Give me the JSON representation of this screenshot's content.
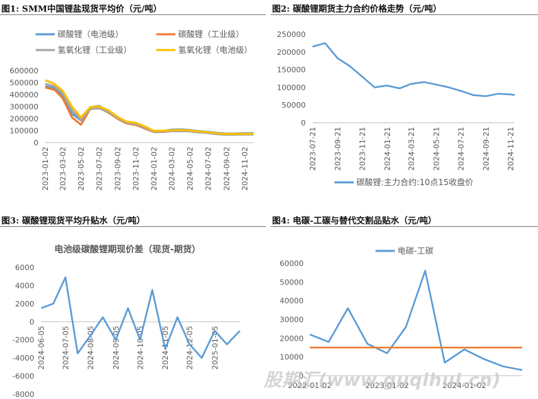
{
  "figures": [
    {
      "label": "图1:",
      "title": "SMM中国锂盐现货平均价（元/吨）"
    },
    {
      "label": "图2:",
      "title": "碳酸锂期货主力合约价格走势（元/吨）"
    },
    {
      "label": "图3:",
      "title": "碳酸锂现货平均升贴水（元/吨）"
    },
    {
      "label": "图4:",
      "title": "电碳-工碳与替代交割品贴水（元/吨）"
    }
  ],
  "watermark": "股期汇(www.guqihui.cn)",
  "chart_data": [
    {
      "type": "line",
      "title": "",
      "x": [
        "2023-01-02",
        "2023-02-02",
        "2023-03-02",
        "2023-04-02",
        "2023-05-02",
        "2023-06-02",
        "2023-07-02",
        "2023-08-02",
        "2023-09-02",
        "2023-10-02",
        "2023-11-02",
        "2023-12-02",
        "2024-01-02",
        "2024-02-02",
        "2024-03-02",
        "2024-04-02",
        "2024-05-02",
        "2024-06-02",
        "2024-07-02",
        "2024-08-02",
        "2024-09-02",
        "2024-10-02",
        "2024-11-02",
        "2024-12-02"
      ],
      "x_ticks": [
        "2023-01-02",
        "2023-03-02",
        "2023-05-02",
        "2023-07-02",
        "2023-09-02",
        "2023-11-02",
        "2024-01-02",
        "2024-03-02",
        "2024-05-02",
        "2024-07-02",
        "2024-09-02",
        "2024-11-02"
      ],
      "ylim": [
        0,
        600000
      ],
      "y_ticks": [
        "0",
        "100000",
        "200000",
        "300000",
        "400000",
        "500000",
        "600000"
      ],
      "legend_position": "top",
      "series": [
        {
          "name": "碳酸锂（电池级）",
          "color": "#5b9bd5",
          "values": [
            470000,
            455000,
            395000,
            240000,
            185000,
            295000,
            305000,
            265000,
            210000,
            170000,
            160000,
            130000,
            97000,
            97000,
            108000,
            110000,
            105000,
            95000,
            90000,
            80000,
            75000,
            76000,
            78000,
            78000
          ]
        },
        {
          "name": "碳酸锂（工业级）",
          "color": "#ed7d31",
          "values": [
            460000,
            440000,
            370000,
            210000,
            150000,
            280000,
            290000,
            250000,
            198000,
            160000,
            148000,
            118000,
            88000,
            88000,
            100000,
            103000,
            98000,
            88000,
            83000,
            73000,
            68000,
            69000,
            70000,
            70000
          ]
        },
        {
          "name": "氢氧化锂（工业级）",
          "color": "#a5a5a5",
          "values": [
            490000,
            470000,
            410000,
            270000,
            190000,
            280000,
            285000,
            255000,
            205000,
            165000,
            155000,
            125000,
            90000,
            90000,
            95000,
            96000,
            94000,
            85000,
            80000,
            70000,
            65000,
            66000,
            67000,
            67000
          ]
        },
        {
          "name": "氢氧化锂（电池级）",
          "color": "#ffc000",
          "values": [
            520000,
            490000,
            430000,
            300000,
            210000,
            295000,
            300000,
            270000,
            215000,
            175000,
            165000,
            135000,
            98000,
            98000,
            103000,
            105000,
            102000,
            92000,
            87000,
            76000,
            72000,
            73000,
            74000,
            74000
          ]
        }
      ]
    },
    {
      "type": "line",
      "title": "",
      "x": [
        "2023-07-21",
        "2023-08-21",
        "2023-09-21",
        "2023-10-21",
        "2023-11-21",
        "2023-12-21",
        "2024-01-21",
        "2024-02-21",
        "2024-03-21",
        "2024-04-21",
        "2024-05-21",
        "2024-06-21",
        "2024-07-21",
        "2024-08-21",
        "2024-09-21",
        "2024-10-21",
        "2024-11-21",
        "2024-12-01"
      ],
      "x_ticks": [
        "2023-07-21",
        "2023-09-21",
        "2023-11-21",
        "2024-01-21",
        "2024-03-21",
        "2024-05-21",
        "2024-07-21",
        "2024-09-21",
        "2024-11-21"
      ],
      "ylim": [
        0,
        250000
      ],
      "y_ticks": [
        "0",
        "50000",
        "100000",
        "150000",
        "200000",
        "250000"
      ],
      "legend_position": "bottom",
      "series": [
        {
          "name": "碳酸锂:主力合约:10点15收盘价",
          "color": "#5b9bd5",
          "values": [
            215000,
            225000,
            182000,
            160000,
            130000,
            100000,
            105000,
            97000,
            110000,
            115000,
            108000,
            100000,
            90000,
            78000,
            75000,
            82000,
            80000,
            78000
          ]
        }
      ]
    },
    {
      "type": "line",
      "title": "电池级碳酸锂期现价差（现货-期货）",
      "x": [
        "2024-06-05",
        "2024-06-20",
        "2024-07-05",
        "2024-07-20",
        "2024-08-05",
        "2024-08-20",
        "2024-09-05",
        "2024-09-20",
        "2024-10-05",
        "2024-10-20",
        "2024-11-05",
        "2024-11-20",
        "2024-12-05",
        "2024-12-20",
        "2025-01-05",
        "2025-01-20",
        "2025-02-05"
      ],
      "x_ticks": [
        "2024-06-05",
        "2024-07-05",
        "2024-08-05",
        "2024-09-05",
        "2024-10-05",
        "2024-11-05",
        "2024-12-05",
        "2025-01-05"
      ],
      "ylim": [
        -8000,
        6000
      ],
      "y_ticks": [
        "-8000",
        "-6000",
        "-4000",
        "-2000",
        "0",
        "2000",
        "4000",
        "6000"
      ],
      "series": [
        {
          "values": [
            1500,
            2000,
            4900,
            -3500,
            -1500,
            500,
            -2000,
            1500,
            -2000,
            3500,
            -3000,
            500,
            -2500,
            -4000,
            -1000,
            -2500,
            -1000
          ]
        }
      ]
    },
    {
      "type": "line",
      "title": "",
      "x": [
        "2022-01-02",
        "2022-04-01",
        "2022-07-01",
        "2022-10-01",
        "2023-01-02",
        "2023-04-01",
        "2023-07-01",
        "2023-10-01",
        "2024-01-02",
        "2024-04-01",
        "2024-07-01",
        "2024-10-01"
      ],
      "x_ticks": [
        "2022-01-02",
        "2023-01-02",
        "2024-01-02"
      ],
      "ylim": [
        0,
        60000
      ],
      "y_ticks": [
        "0",
        "10000",
        "20000",
        "30000",
        "40000",
        "50000",
        "60000"
      ],
      "legend_position": "top",
      "series": [
        {
          "name": "电碳-工碳",
          "color": "#5b9bd5",
          "values": [
            22000,
            18000,
            36000,
            17000,
            12000,
            26000,
            56000,
            7000,
            14000,
            9000,
            5000,
            3000
          ]
        },
        {
          "color": "#ed7d31",
          "values": [
            15000,
            15000,
            15000,
            15000,
            15000,
            15000,
            15000,
            15000,
            15000,
            15000,
            15000,
            15000
          ]
        }
      ]
    }
  ]
}
